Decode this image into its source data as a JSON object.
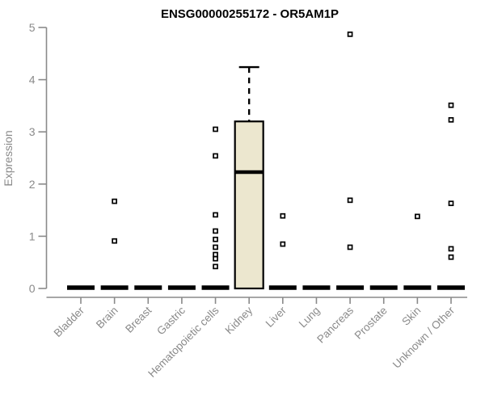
{
  "chart_data": {
    "type": "boxplot",
    "title": "ENSG00000255172 - OR5AM1P",
    "ylabel": "Expression",
    "xlabel": "",
    "ylim": [
      0,
      5
    ],
    "yticks": [
      "0",
      "1",
      "2",
      "3",
      "4",
      "5"
    ],
    "grid": "off",
    "legend": "none",
    "categories": [
      "Bladder",
      "Brain",
      "Breast",
      "Gastric",
      "Hematopoietic cells",
      "Kidney",
      "Liver",
      "Lung",
      "Pancreas",
      "Prostate",
      "Skin",
      "Unknown / Other"
    ],
    "boxes": [
      {
        "category": "Bladder",
        "median": 0,
        "q1": 0,
        "q3": 0,
        "whisker_low": 0,
        "whisker_high": 0,
        "outliers": []
      },
      {
        "category": "Brain",
        "median": 0,
        "q1": 0,
        "q3": 0,
        "whisker_low": 0,
        "whisker_high": 0,
        "outliers": [
          1.67,
          0.91
        ]
      },
      {
        "category": "Breast",
        "median": 0,
        "q1": 0,
        "q3": 0,
        "whisker_low": 0,
        "whisker_high": 0,
        "outliers": []
      },
      {
        "category": "Gastric",
        "median": 0,
        "q1": 0,
        "q3": 0,
        "whisker_low": 0,
        "whisker_high": 0,
        "outliers": []
      },
      {
        "category": "Hematopoietic cells",
        "median": 0,
        "q1": 0,
        "q3": 0,
        "whisker_low": 0,
        "whisker_high": 0,
        "outliers": [
          3.05,
          2.54,
          1.41,
          1.1,
          0.94,
          0.79,
          0.65,
          0.57,
          0.42
        ]
      },
      {
        "category": "Kidney",
        "median": 2.23,
        "q1": 0,
        "q3": 3.2,
        "whisker_low": 0,
        "whisker_high": 4.24,
        "outliers": []
      },
      {
        "category": "Liver",
        "median": 0,
        "q1": 0,
        "q3": 0,
        "whisker_low": 0,
        "whisker_high": 0,
        "outliers": [
          1.39,
          0.85
        ]
      },
      {
        "category": "Lung",
        "median": 0,
        "q1": 0,
        "q3": 0,
        "whisker_low": 0,
        "whisker_high": 0,
        "outliers": []
      },
      {
        "category": "Pancreas",
        "median": 0,
        "q1": 0,
        "q3": 0,
        "whisker_low": 0,
        "whisker_high": 0,
        "outliers": [
          4.87,
          1.69,
          0.79
        ]
      },
      {
        "category": "Prostate",
        "median": 0,
        "q1": 0,
        "q3": 0,
        "whisker_low": 0,
        "whisker_high": 0,
        "outliers": []
      },
      {
        "category": "Skin",
        "median": 0,
        "q1": 0,
        "q3": 0,
        "whisker_low": 0,
        "whisker_high": 0,
        "outliers": [
          1.38
        ]
      },
      {
        "category": "Unknown / Other",
        "median": 0,
        "q1": 0,
        "q3": 0,
        "whisker_low": 0,
        "whisker_high": 0,
        "outliers": [
          3.51,
          3.23,
          1.63,
          0.76,
          0.6
        ]
      }
    ],
    "colors": {
      "box_fill": "#ece7cf",
      "box_stroke": "#000000",
      "median": "#000000",
      "zero_bar": "#000000",
      "outlier_fill": "#ffffff",
      "outlier_stroke": "#000000",
      "axis": "#8a8a8a",
      "tick_label": "#8a8a8a",
      "title": "#000000",
      "background": "#ffffff"
    }
  }
}
